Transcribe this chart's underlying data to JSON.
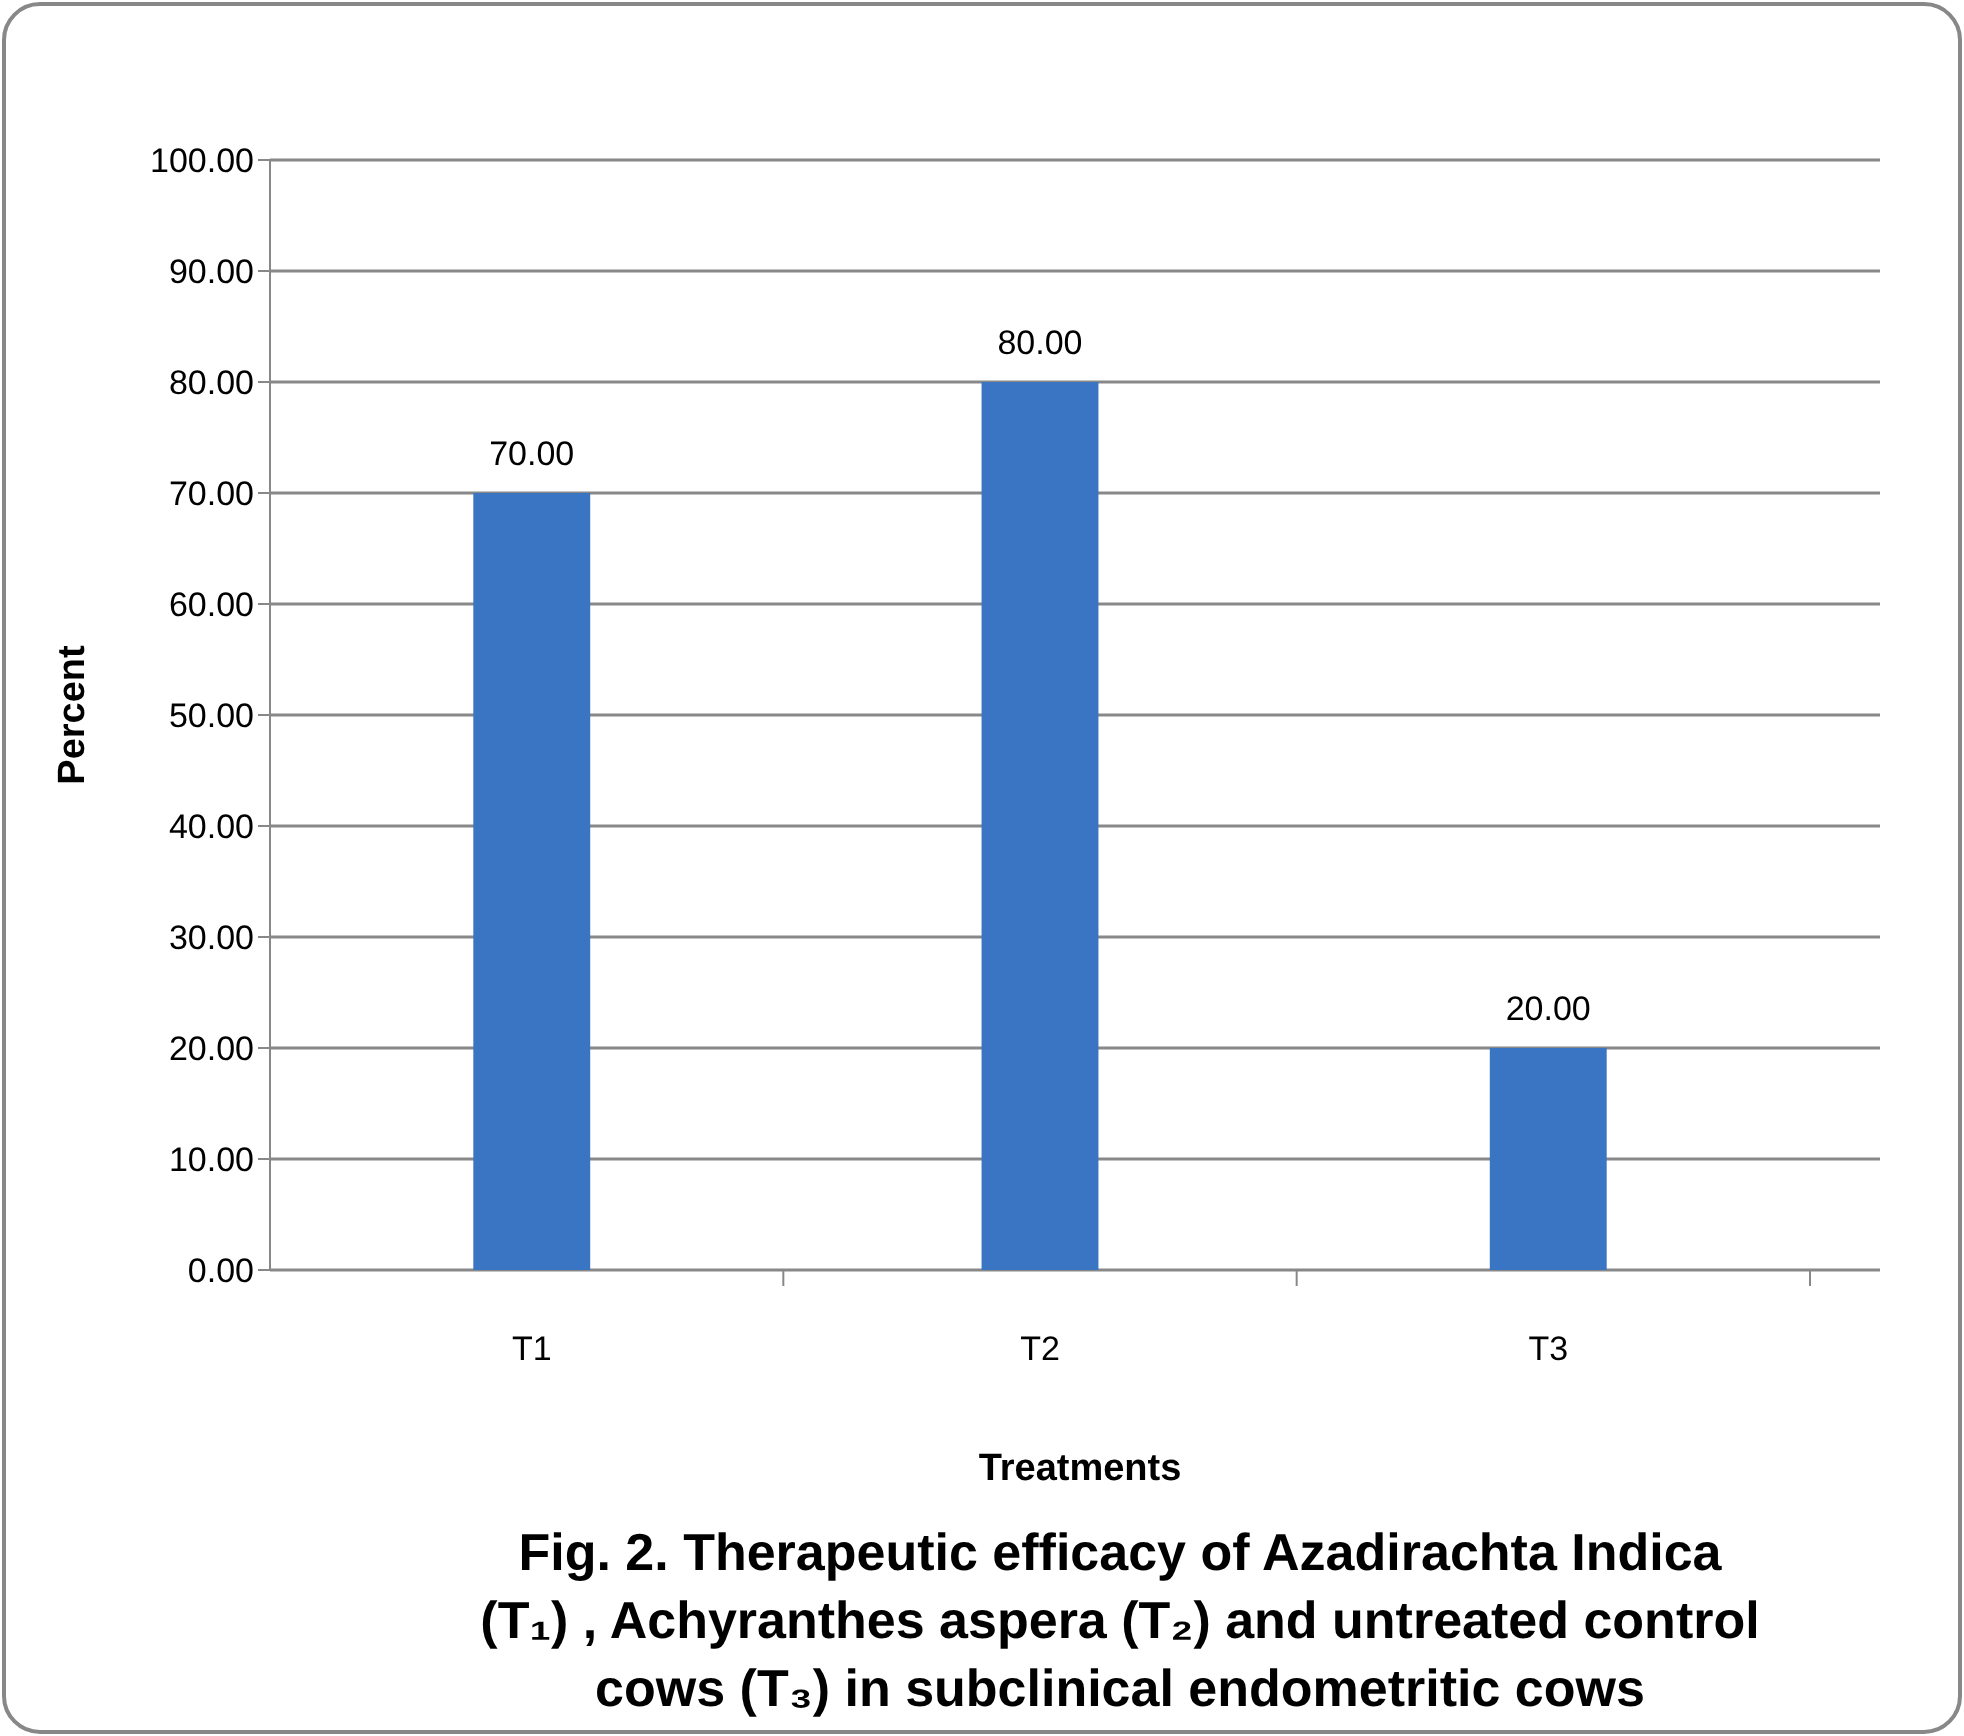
{
  "chart_data": {
    "type": "bar",
    "title": "Fig. 2.  Therapeutic efficacy of Azadirachta Indica (T₁) , Achyranthes aspera (T₂) and untreated control cows (T₃) in subclinical endometritic cows",
    "xlabel": "Treatments",
    "ylabel": "Percent",
    "categories": [
      "T1",
      "T2",
      "T3"
    ],
    "values": [
      70,
      80,
      20
    ],
    "color": "#3a75c4",
    "value_labels": [
      "70.00",
      "80.00",
      "20.00"
    ],
    "ylim": [
      0,
      100
    ],
    "yticks": [
      {
        "value": 0,
        "label": "0.00"
      },
      {
        "value": 10,
        "label": "10.00"
      },
      {
        "value": 20,
        "label": "20.00"
      },
      {
        "value": 30,
        "label": "30.00"
      },
      {
        "value": 40,
        "label": "40.00"
      },
      {
        "value": 50,
        "label": "50.00"
      },
      {
        "value": 60,
        "label": "60.00"
      },
      {
        "value": 70,
        "label": "70.00"
      },
      {
        "value": 80,
        "label": "80.00"
      },
      {
        "value": 90,
        "label": "90.00"
      },
      {
        "value": 100,
        "label": "100.00"
      }
    ],
    "grid": true
  }
}
